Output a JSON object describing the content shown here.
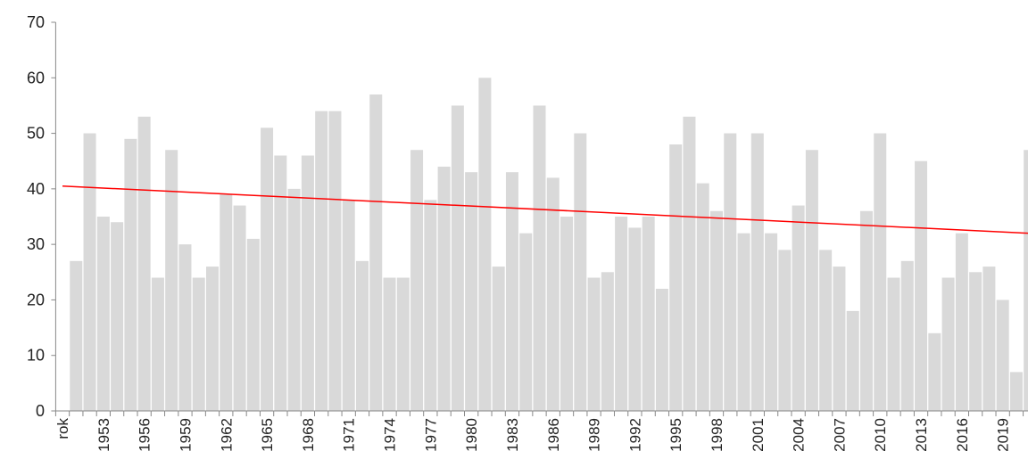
{
  "chart_data": {
    "type": "bar",
    "categories": [
      "rok",
      null,
      null,
      "1953",
      null,
      null,
      "1956",
      null,
      null,
      "1959",
      null,
      null,
      "1962",
      null,
      null,
      "1965",
      null,
      null,
      "1968",
      null,
      null,
      "1971",
      null,
      null,
      "1974",
      null,
      null,
      "1977",
      null,
      null,
      "1980",
      null,
      null,
      "1983",
      null,
      null,
      "1986",
      null,
      null,
      "1989",
      null,
      null,
      "1992",
      null,
      null,
      "1995",
      null,
      null,
      "1998",
      null,
      null,
      "2001",
      null,
      null,
      "2004",
      null,
      null,
      "2007",
      null,
      null,
      "2010",
      null,
      null,
      "2013",
      null,
      null,
      "2016",
      null,
      null,
      "2019",
      null,
      null
    ],
    "values": [
      null,
      27,
      50,
      35,
      34,
      49,
      53,
      24,
      47,
      30,
      24,
      26,
      39,
      37,
      31,
      51,
      46,
      40,
      46,
      54,
      54,
      38,
      27,
      57,
      24,
      24,
      47,
      38,
      44,
      55,
      43,
      60,
      26,
      43,
      32,
      55,
      42,
      35,
      50,
      24,
      25,
      35,
      33,
      35,
      22,
      48,
      53,
      41,
      36,
      50,
      32,
      50,
      32,
      29,
      37,
      47,
      29,
      26,
      18,
      36,
      50,
      24,
      27,
      45,
      14,
      24,
      32,
      25,
      26,
      20,
      7,
      47
    ],
    "color": "#d9d9d9",
    "trendline": {
      "values": [
        40.5,
        32
      ],
      "color": "#ff0000"
    },
    "ylim": [
      0,
      70
    ],
    "yticks": [
      0,
      10,
      20,
      30,
      40,
      50,
      60,
      70
    ],
    "grid": false
  }
}
